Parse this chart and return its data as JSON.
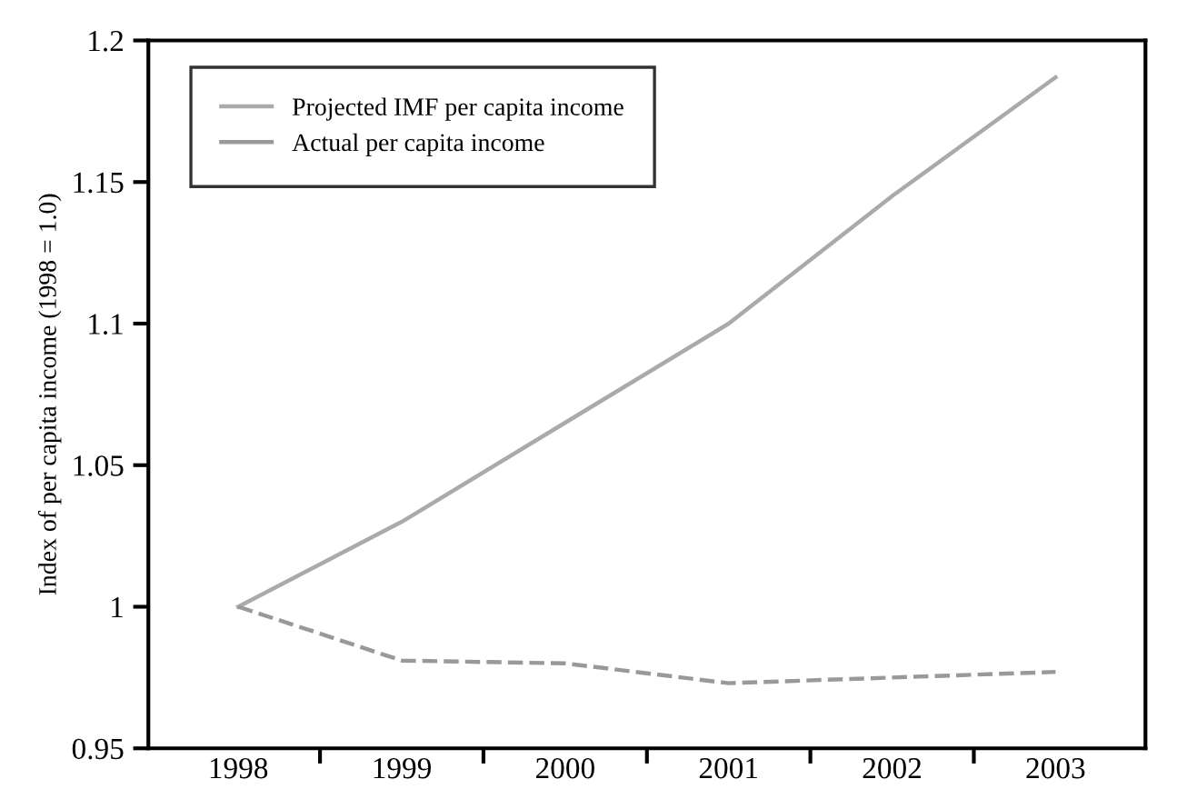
{
  "chart_data": {
    "type": "line",
    "ylabel": "Index of per capita income (1998 = 1.0)",
    "categories": [
      "1998",
      "1999",
      "2000",
      "2001",
      "2002",
      "2003"
    ],
    "series": [
      {
        "name": "Projected IMF per capita income",
        "color": "#aaaaaa",
        "line_style": "solid",
        "values": [
          1.0,
          1.03,
          1.065,
          1.1,
          1.145,
          1.187
        ]
      },
      {
        "name": "Actual per capita income",
        "color": "#999999",
        "line_style": "dashed",
        "values": [
          1.0,
          0.981,
          0.98,
          0.973,
          0.975,
          0.977
        ]
      }
    ],
    "ylim": [
      0.95,
      1.2
    ],
    "yticks": [
      0.95,
      1,
      1.05,
      1.1,
      1.15,
      1.2
    ],
    "grid": false,
    "legend": "top left",
    "marker": "none"
  }
}
